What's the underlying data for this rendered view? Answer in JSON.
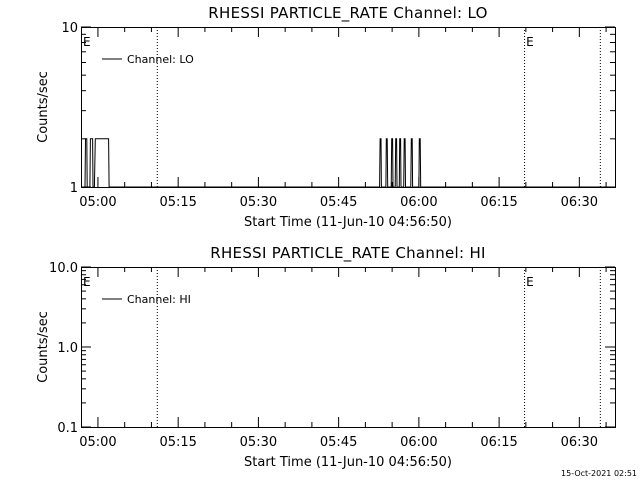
{
  "chart_data": [
    {
      "type": "line",
      "title": "RHESSI PARTICLE_RATE Channel: LO",
      "xlabel": "Start Time (11-Jun-10 04:56:50)",
      "ylabel": "Counts/sec",
      "yscale": "log",
      "ylim": [
        1,
        10
      ],
      "xlim": [
        "04:56:50",
        "06:36:40"
      ],
      "x_ticks": [
        "05:00",
        "05:15",
        "05:30",
        "05:45",
        "06:00",
        "06:15",
        "06:30"
      ],
      "y_ticks": [
        {
          "value": 1,
          "label": "1"
        },
        {
          "value": 10,
          "label": "10"
        }
      ],
      "grid": false,
      "legend_position": "top-left",
      "series": [
        {
          "name": "Channel: LO",
          "color": "#000000",
          "x": [
            "04:56:50",
            "04:57:35",
            "04:57:40",
            "04:57:55",
            "04:58:00",
            "04:58:15",
            "04:58:30",
            "04:58:35",
            "04:59:00",
            "04:59:05",
            "04:59:20",
            "04:59:30",
            "05:00:20",
            "05:00:25",
            "05:02:00",
            "05:02:05",
            "05:52:40",
            "05:52:45",
            "05:52:55",
            "05:53:00",
            "05:53:50",
            "05:53:55",
            "05:54:05",
            "05:54:10",
            "05:54:50",
            "05:54:55",
            "05:55:05",
            "05:55:10",
            "05:55:35",
            "05:55:40",
            "05:55:50",
            "05:55:55",
            "05:56:20",
            "05:56:25",
            "05:56:35",
            "05:56:40",
            "05:57:10",
            "05:57:15",
            "05:57:25",
            "05:57:30",
            "05:58:30",
            "05:58:35",
            "05:58:45",
            "05:58:50",
            "06:00:00",
            "06:00:05",
            "06:00:15",
            "06:00:20",
            "06:36:40"
          ],
          "y": [
            1,
            1,
            2,
            2,
            1,
            1,
            1,
            2,
            2,
            1,
            1,
            2,
            2,
            2,
            2,
            1,
            1,
            2,
            2,
            1,
            1,
            2,
            2,
            1,
            1,
            2,
            2,
            1,
            1,
            2,
            2,
            1,
            1,
            2,
            2,
            1,
            1,
            2,
            2,
            1,
            1,
            2,
            2,
            1,
            1,
            2,
            2,
            1,
            1
          ]
        }
      ],
      "markers": [
        {
          "time": "04:56:50",
          "label": "E",
          "line": false
        },
        {
          "time": "05:11:00",
          "label": "",
          "line": true
        },
        {
          "time": "06:19:40",
          "label": "E",
          "line": true
        },
        {
          "time": "06:33:50",
          "label": "",
          "line": true
        }
      ]
    },
    {
      "type": "line",
      "title": "RHESSI PARTICLE_RATE Channel: HI",
      "xlabel": "Start Time (11-Jun-10 04:56:50)",
      "ylabel": "Counts/sec",
      "yscale": "log",
      "ylim": [
        0.1,
        10
      ],
      "xlim": [
        "04:56:50",
        "06:36:40"
      ],
      "x_ticks": [
        "05:00",
        "05:15",
        "05:30",
        "05:45",
        "06:00",
        "06:15",
        "06:30"
      ],
      "y_ticks": [
        {
          "value": 0.1,
          "label": "0.1"
        },
        {
          "value": 1,
          "label": "1.0"
        },
        {
          "value": 10,
          "label": "10.0"
        }
      ],
      "grid": false,
      "legend_position": "top-left",
      "series": [
        {
          "name": "Channel: HI",
          "color": "#000000",
          "x": [],
          "y": []
        }
      ],
      "markers": [
        {
          "time": "04:56:50",
          "label": "E",
          "line": false
        },
        {
          "time": "05:11:00",
          "label": "",
          "line": true
        },
        {
          "time": "06:19:40",
          "label": "E",
          "line": true
        },
        {
          "time": "06:33:50",
          "label": "",
          "line": true
        }
      ]
    }
  ],
  "footer": {
    "timestamp": "15-Oct-2021 02:51"
  }
}
